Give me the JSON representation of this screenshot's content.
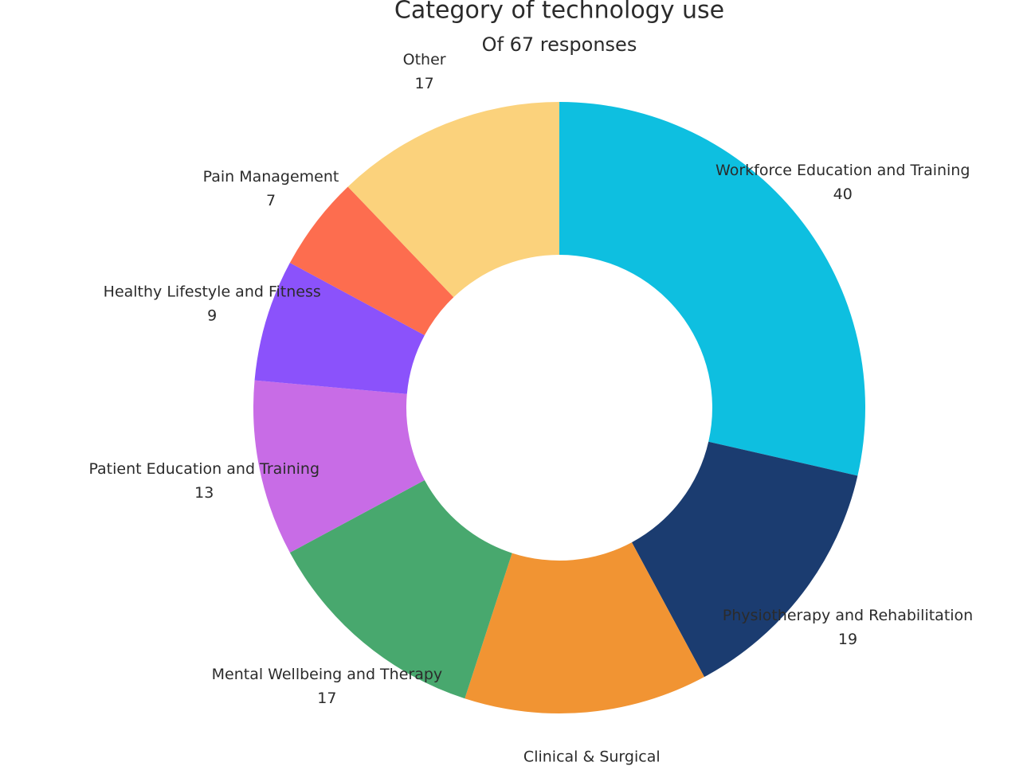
{
  "chart_data": {
    "type": "donut",
    "title": "Category of technology use",
    "subtitle": "Of 67 responses",
    "categories": [
      "Workforce Education and Training",
      "Physiotherapy and Rehabilitation",
      "Clinical & Surgical",
      "Mental Wellbeing and Therapy",
      "Patient Education and Training",
      "Healthy Lifestyle and Fitness",
      "Pain Management",
      "Other"
    ],
    "values": [
      40,
      19,
      18,
      17,
      13,
      9,
      7,
      17
    ],
    "colors": [
      "#0ebfe0",
      "#1b3c70",
      "#f19433",
      "#48a86e",
      "#c86ce6",
      "#8b52fb",
      "#fd6d4f",
      "#fbd27c"
    ]
  }
}
